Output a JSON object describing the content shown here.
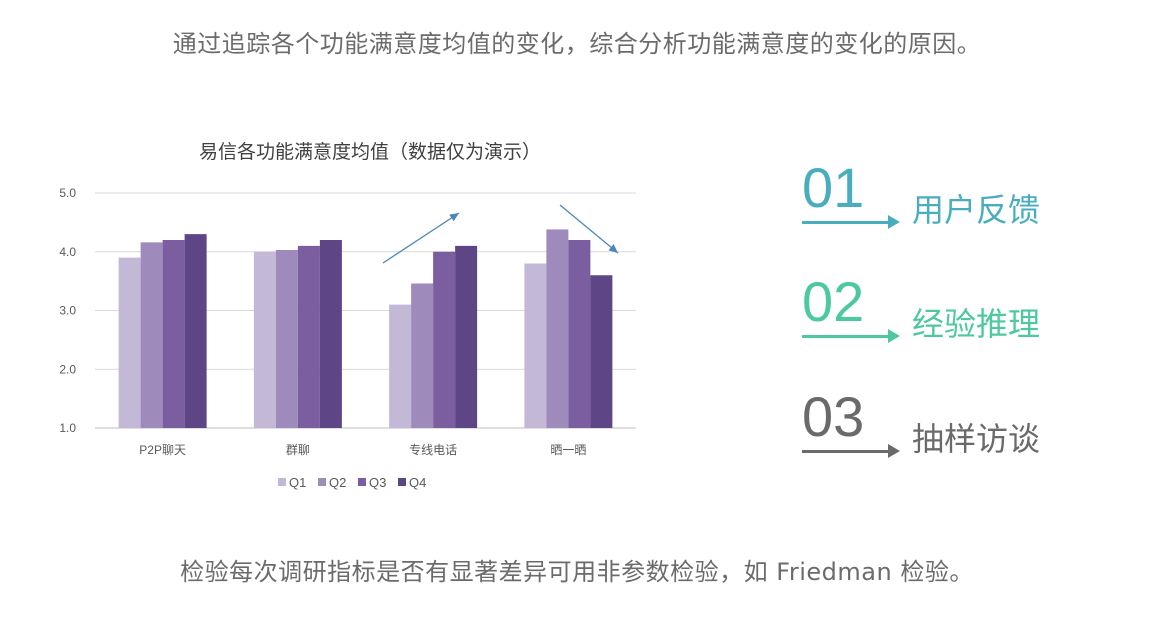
{
  "header": {
    "text": "通过追踪各个功能满意度均值的变化，综合分析功能满意度的变化的原因。"
  },
  "footer": {
    "text": "检验每次调研指标是否有显著差异可用非参数检验，如 Friedman 检验。"
  },
  "chart_data": {
    "type": "bar",
    "title": "易信各功能满意度均值（数据仅为演示）",
    "categories": [
      "P2P聊天",
      "群聊",
      "专线电话",
      "晒一晒"
    ],
    "series": [
      {
        "name": "Q1",
        "values": [
          3.9,
          4.0,
          3.1,
          3.8
        ],
        "color": "#c3b8d6"
      },
      {
        "name": "Q2",
        "values": [
          4.16,
          4.03,
          3.46,
          4.38
        ],
        "color": "#9e8bbc"
      },
      {
        "name": "Q3",
        "values": [
          4.2,
          4.1,
          4.0,
          4.2
        ],
        "color": "#7a5ea0"
      },
      {
        "name": "Q4",
        "values": [
          4.3,
          4.2,
          4.1,
          3.6
        ],
        "color": "#5e4585"
      }
    ],
    "ylim": [
      1.0,
      5.0
    ],
    "yticks": [
      "1.0",
      "2.0",
      "3.0",
      "4.0",
      "5.0"
    ],
    "legend_position": "bottom",
    "annotations": [
      "trend-up arrow over 专线电话",
      "trend-down arrow over 晒一晒"
    ]
  },
  "items": [
    {
      "number": "01",
      "label": "用户反馈",
      "color": "#4aacbf"
    },
    {
      "number": "02",
      "label": "经验推理",
      "color": "#4dc8a0"
    },
    {
      "number": "03",
      "label": "抽样访谈",
      "color": "#6a6a6a"
    }
  ]
}
